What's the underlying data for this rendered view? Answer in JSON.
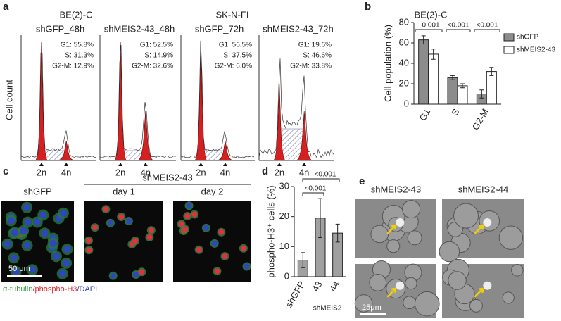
{
  "panel_a": {
    "label": "a",
    "y_label": "Cell count",
    "groups": [
      "BE(2)-C",
      "SK-N-FI"
    ],
    "plots": [
      {
        "title": "shGFP_48h",
        "stats": [
          "G1: 55.8%",
          "S: 31.3%",
          "G2-M: 12.9%"
        ]
      },
      {
        "title": "shMEIS2-43_48h",
        "stats": [
          "G1: 52.5%",
          "S: 14.9%",
          "G2-M: 32.6%"
        ]
      },
      {
        "title": "shGFP_72h",
        "stats": [
          "G1: 56.5%",
          "S: 37.5%",
          "G2-M:  6.0%"
        ]
      },
      {
        "title": "shMEIS2-43_72h",
        "stats": [
          "G1: 19.6%",
          "S: 46.6%",
          "G2-M: 33.8%"
        ]
      }
    ],
    "markers": [
      "2n",
      "4n"
    ]
  },
  "chart_data": [
    {
      "type": "bar",
      "panel_label": "b",
      "title": "BE(2)-C",
      "y_label": "Cell population (%)",
      "categories": [
        "G1",
        "S",
        "G2-M"
      ],
      "series": [
        {
          "name": "shGFP",
          "color": "#8c8c8c",
          "values": [
            63,
            26,
            10
          ],
          "errors": [
            4,
            2,
            4
          ]
        },
        {
          "name": "shMEIS2-43",
          "color": "#ffffff",
          "values": [
            49,
            18,
            32
          ],
          "errors": [
            5,
            2,
            4
          ]
        }
      ],
      "ylim": [
        0,
        80
      ],
      "yticks": [
        0,
        20,
        40,
        60,
        80
      ],
      "annotations": [
        "0.001",
        "<0.001",
        "<0.001"
      ]
    },
    {
      "type": "bar",
      "panel_label": "d",
      "y_label": "phospho-H3⁺ cells (%)",
      "x_label": "shMEIS2",
      "categories": [
        "shGFP",
        "43",
        "44"
      ],
      "values": [
        5.5,
        19.5,
        14.5
      ],
      "errors": [
        2.5,
        6.5,
        3
      ],
      "color": "#a0a0a0",
      "ylim": [
        0,
        30
      ],
      "yticks": [
        0,
        10,
        20,
        30
      ],
      "annotations": [
        "<0.001",
        "<0.001"
      ]
    }
  ],
  "panel_c": {
    "label": "c",
    "columns": [
      "shGFP",
      "day 1",
      "day 2"
    ],
    "group": "shMEIS2-43",
    "scale_bar": "50 μm",
    "stain_legend": [
      {
        "text": "α-tubulin",
        "color": "#3aa14a"
      },
      {
        "text": "/phospho-H3",
        "color": "#e0202a"
      },
      {
        "text": "/DAPI",
        "color": "#2a3fb0"
      }
    ]
  },
  "panel_e": {
    "label": "e",
    "columns": [
      "shMEIS2-43",
      "shMEIS2-44"
    ],
    "scale_bar": "25μm"
  }
}
